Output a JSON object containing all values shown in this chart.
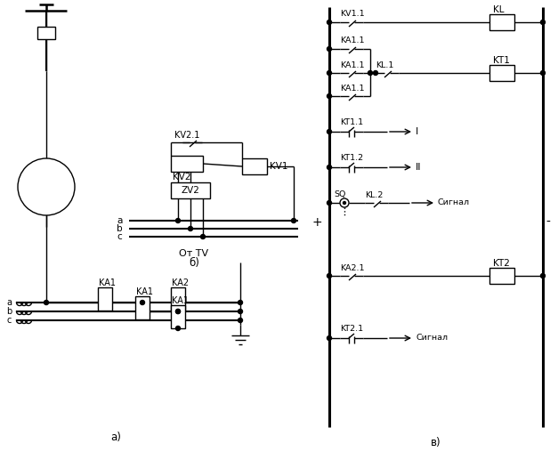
{
  "bg_color": "#ffffff",
  "line_color": "#000000",
  "font_size": 7.5,
  "label_a": "a",
  "label_b": "b",
  "label_c": "c",
  "label_ot_tv": "От TV",
  "label_b_marker": "б)",
  "label_a_marker": "а)",
  "label_v_marker": "в)",
  "label_plus": "+",
  "label_minus": "-"
}
